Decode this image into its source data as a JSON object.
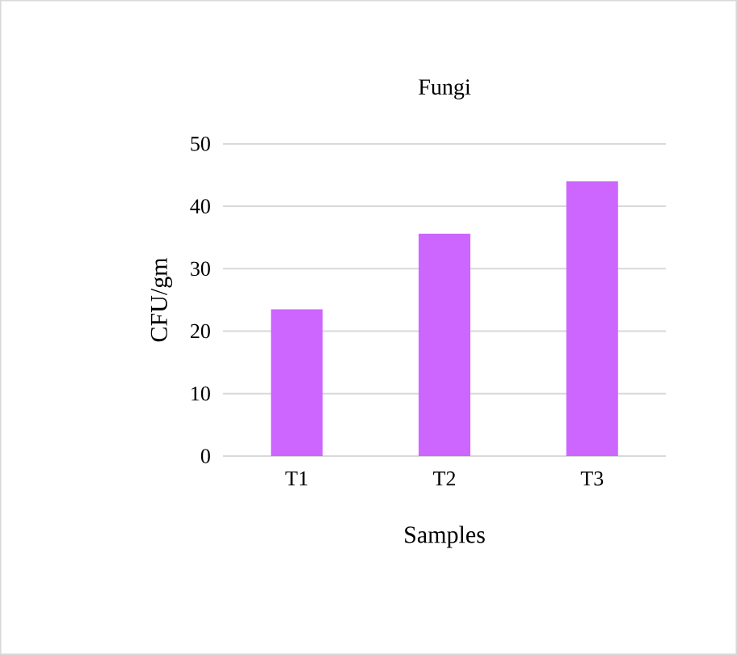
{
  "chart_data": {
    "type": "bar",
    "title": "Fungi",
    "xlabel": "Samples",
    "ylabel": "CFU/gm",
    "categories": [
      "T1",
      "T2",
      "T3"
    ],
    "values": [
      23.5,
      35.6,
      44.0
    ],
    "color": "#cc66ff",
    "ylim": [
      0,
      50
    ],
    "yticks": [
      0,
      10,
      20,
      30,
      40,
      50
    ],
    "grid": "y"
  }
}
